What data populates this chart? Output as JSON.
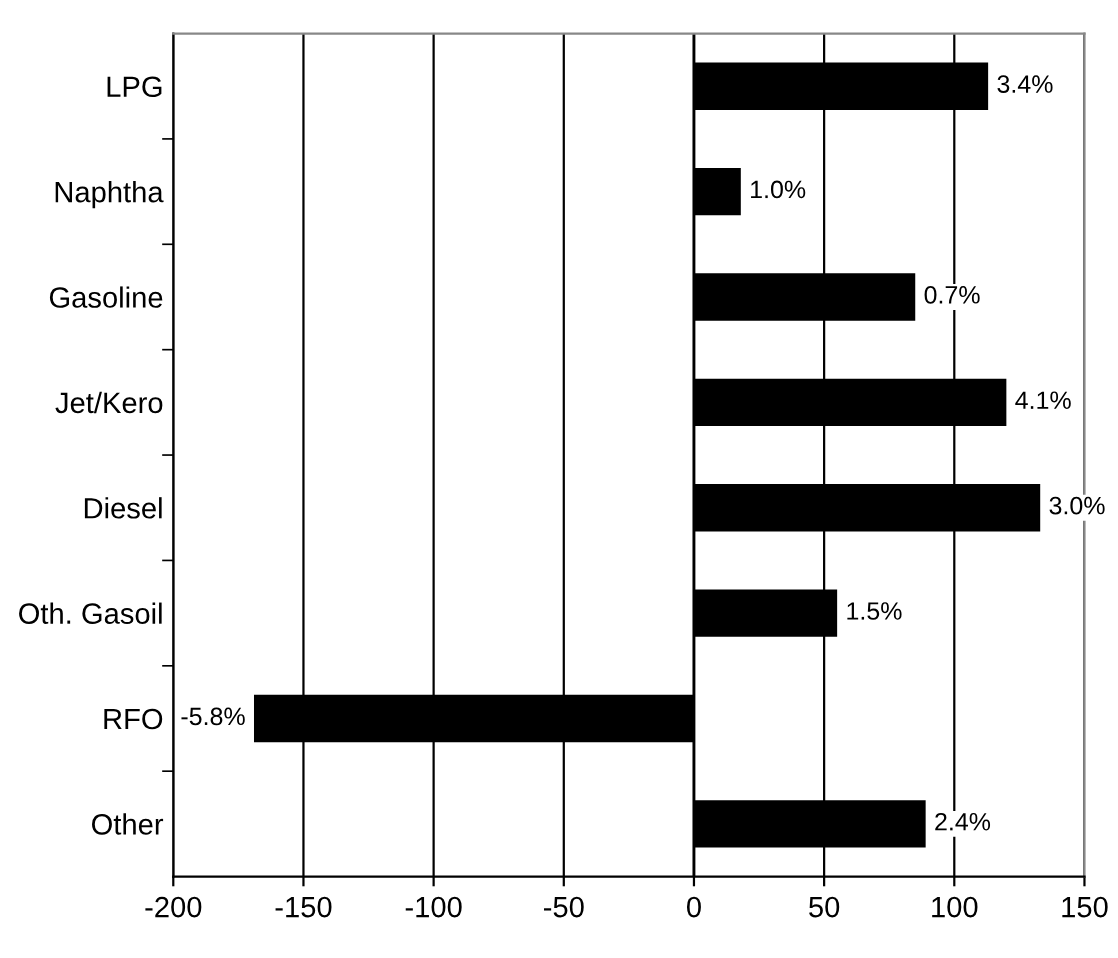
{
  "chart_data": {
    "type": "bar",
    "orientation": "horizontal",
    "categories": [
      "LPG",
      "Naphtha",
      "Gasoline",
      "Jet/Kero",
      "Diesel",
      "Oth. Gasoil",
      "RFO",
      "Other"
    ],
    "values": [
      113,
      18,
      85,
      120,
      133,
      55,
      -169,
      89
    ],
    "annotations": [
      {
        "text": "3.4%",
        "x": 113,
        "y": "LPG"
      },
      {
        "text": "1.0%",
        "x": 18,
        "y": "Naphtha"
      },
      {
        "text": "0.7%",
        "x": 85,
        "y": "Gasoline"
      },
      {
        "text": "4.1%",
        "x": 120,
        "y": "Jet/Kero"
      },
      {
        "text": "3.0%",
        "x": 133,
        "y": "Diesel"
      },
      {
        "text": "1.5%",
        "x": 55,
        "y": "Oth. Gasoil"
      },
      {
        "text": "-5.8%",
        "x": -169,
        "y": "RFO"
      },
      {
        "text": "2.4%",
        "x": 89,
        "y": "Other"
      }
    ],
    "color": "#000000",
    "xlim": [
      -200,
      150
    ],
    "xticks": [
      -200,
      -150,
      -100,
      -50,
      0,
      50,
      100,
      150
    ],
    "grid": "x",
    "legend": false
  }
}
